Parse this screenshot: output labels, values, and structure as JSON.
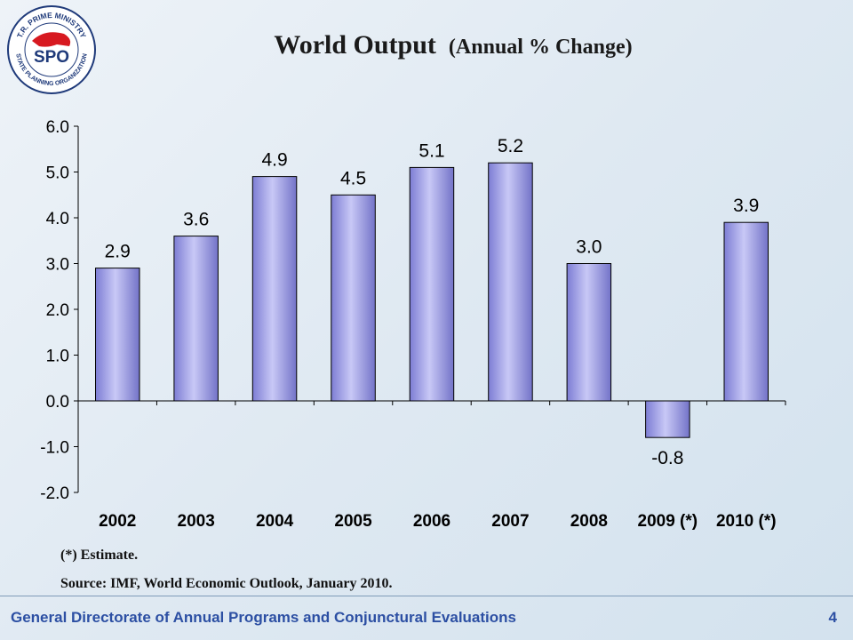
{
  "header": {
    "title_main": "World Output",
    "title_sub": "(Annual % Change)"
  },
  "logo": {
    "top_text": "T.R. PRIME MINISTRY",
    "center_text": "SPO",
    "bottom_text": "STATE PLANNING ORGANIZATION",
    "colors": {
      "red": "#d71920",
      "navy": "#1f3a7a"
    }
  },
  "chart_data": {
    "type": "bar",
    "categories": [
      "2002",
      "2003",
      "2004",
      "2005",
      "2006",
      "2007",
      "2008",
      "2009 (*)",
      "2010 (*)"
    ],
    "values": [
      2.9,
      3.6,
      4.9,
      4.5,
      5.1,
      5.2,
      3.0,
      -0.8,
      3.9
    ],
    "data_labels": [
      "2.9",
      "3.6",
      "4.9",
      "4.5",
      "5.1",
      "5.2",
      "3.0",
      "-0.8",
      "3.9"
    ],
    "y_ticks": [
      "6.0",
      "5.0",
      "4.0",
      "3.0",
      "2.0",
      "1.0",
      "0.0",
      "-1.0",
      "-2.0"
    ],
    "y_tick_values": [
      6,
      5,
      4,
      3,
      2,
      1,
      0,
      -1,
      -2
    ],
    "ylim": [
      -2,
      6
    ],
    "grid": false,
    "bar_color": "#9d9de6",
    "xlabel": "",
    "ylabel": ""
  },
  "notes": {
    "estimate": "(*) Estimate.",
    "source": "Source: IMF, World Economic Outlook, January 2010."
  },
  "footer": {
    "text": "General Directorate of Annual Programs and Conjunctural Evaluations",
    "page_number": "4",
    "color": "#2c4fa3"
  }
}
